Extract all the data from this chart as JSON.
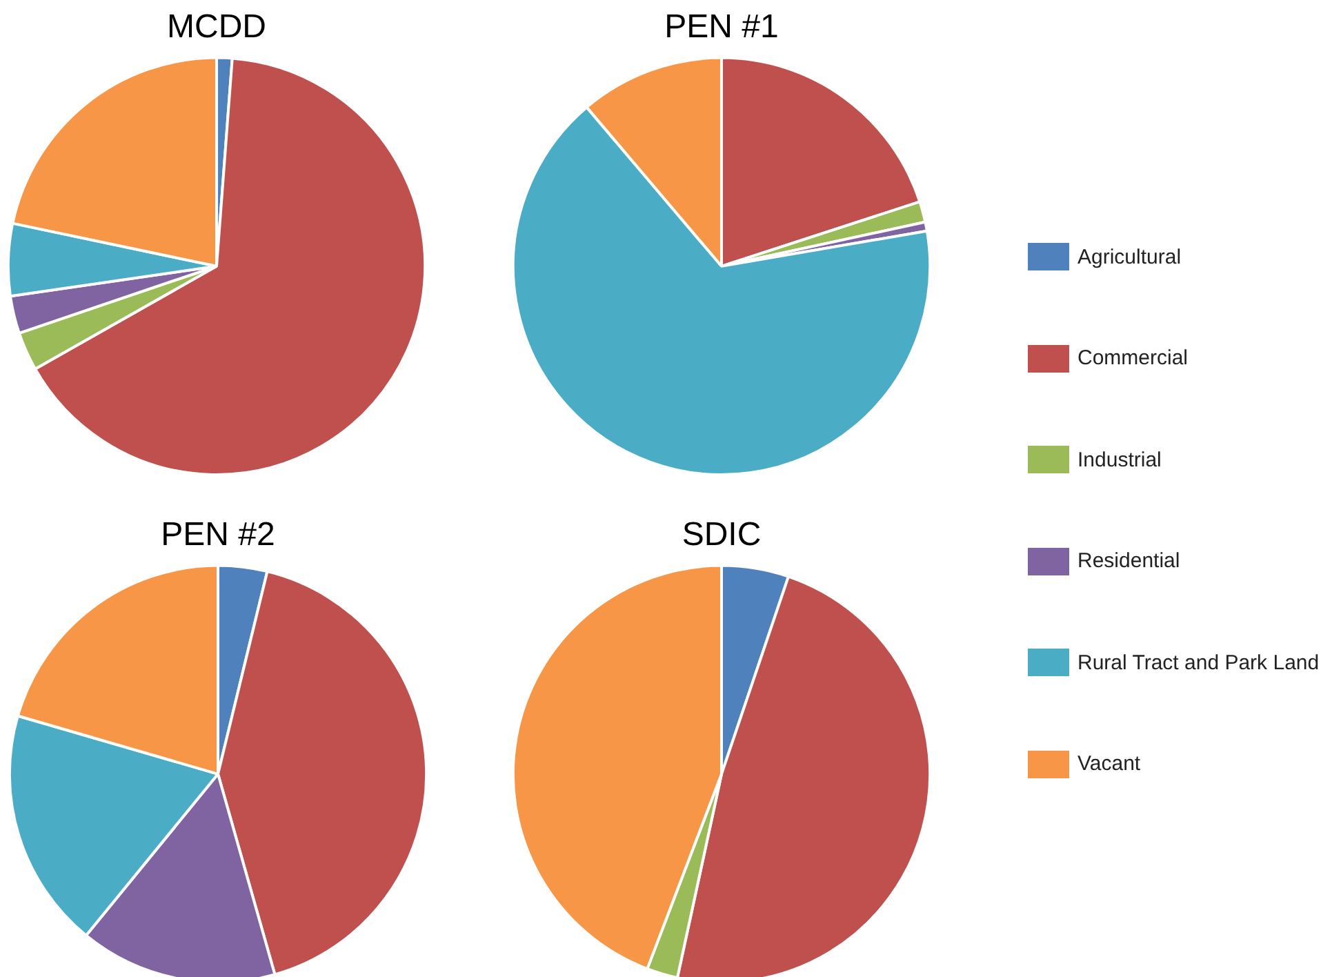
{
  "chart_data": [
    {
      "type": "pie",
      "title": "MCDD",
      "categories": [
        "Agricultural",
        "Commercial",
        "Industrial",
        "Residential",
        "Rural Tract and Park Land",
        "Vacant"
      ],
      "values": [
        1.2,
        65.6,
        3.0,
        2.9,
        5.6,
        21.7
      ],
      "colors": [
        "#4f81bd",
        "#c0504d",
        "#9bbb59",
        "#8064a2",
        "#4bacc6",
        "#f79646"
      ],
      "legend": "right"
    },
    {
      "type": "pie",
      "title": "PEN #1",
      "categories": [
        null,
        null,
        null,
        null,
        null,
        null
      ],
      "values": [
        0,
        20.0,
        1.6,
        0.7,
        66.5,
        11.2
      ],
      "colors": [
        "#4f81bd",
        "#c0504d",
        "#9bbb59",
        "#8064a2",
        "#4bacc6",
        "#f79646"
      ]
    },
    {
      "type": "pie",
      "title": "PEN #2",
      "categories": [
        null,
        null,
        null,
        null,
        null,
        null
      ],
      "values": [
        3.8,
        41.8,
        0,
        15.3,
        18.6,
        20.5
      ],
      "colors": [
        "#4f81bd",
        "#c0504d",
        "#9bbb59",
        "#8064a2",
        "#4bacc6",
        "#f79646"
      ]
    },
    {
      "type": "pie",
      "title": "SDIC",
      "categories": [
        null,
        null,
        null,
        null,
        null,
        null
      ],
      "values": [
        5.2,
        48.2,
        2.4,
        0,
        0,
        44.2
      ],
      "colors": [
        "#4f81bd",
        "#c0504d",
        "#9bbb59",
        "#8064a2",
        "#4bacc6",
        "#f79646"
      ]
    }
  ]
}
